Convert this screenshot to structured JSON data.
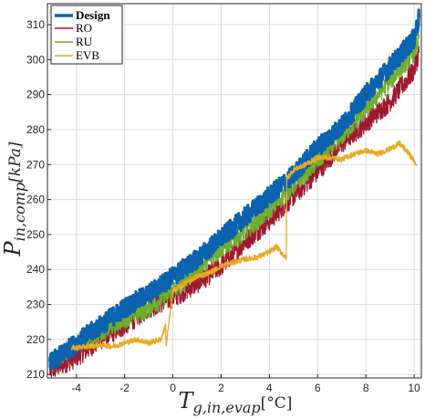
{
  "chart_data": {
    "type": "line",
    "xlabel_main": "T",
    "xlabel_sub": "g,in,evap",
    "xlabel_unit": "[°C]",
    "ylabel_main": "P",
    "ylabel_sub": "in,comp",
    "ylabel_unit": "[kPa]",
    "xlim": [
      -5.2,
      10.3
    ],
    "ylim": [
      209,
      316
    ],
    "xticks": [
      -4,
      -2,
      0,
      2,
      4,
      6,
      8,
      10
    ],
    "yticks": [
      210,
      220,
      230,
      240,
      250,
      260,
      270,
      280,
      290,
      300,
      310
    ],
    "grid": true,
    "legend_position": "top-left",
    "series": [
      {
        "name": "Design",
        "color": "#0b63b0",
        "noise": 2.8,
        "x": [
          -5.1,
          -4,
          -3,
          -2,
          -1,
          0,
          1,
          2,
          3,
          4,
          5,
          6,
          7,
          8,
          9,
          10,
          10.2
        ],
        "y": [
          213,
          219,
          224,
          229,
          233,
          238,
          243,
          249,
          255,
          261,
          267,
          275,
          281,
          290,
          298,
          306,
          312
        ]
      },
      {
        "name": "RO",
        "color": "#9e1a2e",
        "noise": 3.0,
        "x": [
          -5.1,
          -4,
          -3,
          -2,
          -1,
          0,
          1,
          2,
          3,
          4,
          5,
          6,
          7,
          8,
          9,
          10,
          10.2
        ],
        "y": [
          211,
          215,
          220,
          224,
          229,
          232,
          236,
          241,
          248,
          254,
          261,
          268,
          276,
          282,
          288,
          297,
          302
        ]
      },
      {
        "name": "RU",
        "color": "#6fae2e",
        "noise": 2.8,
        "x": [
          -5.1,
          -4,
          -3,
          -2,
          -1,
          0,
          1,
          2,
          3,
          4,
          5,
          6,
          7,
          8,
          9,
          10,
          10.2
        ],
        "y": [
          213,
          219,
          222,
          226,
          229,
          234,
          240,
          246,
          251,
          257,
          264,
          271,
          278,
          286,
          294,
          302,
          306
        ]
      },
      {
        "name": "EVB",
        "color": "#e9a923",
        "noise": 0.8,
        "x": [
          -4.2,
          -3.5,
          -3,
          -2.5,
          -2,
          -1.5,
          -1,
          -0.5,
          -0.3,
          -0.28,
          0,
          0.5,
          1,
          1.5,
          2,
          2.5,
          3,
          3.5,
          4,
          4.3,
          4.6,
          4.7,
          4.72,
          5,
          5.5,
          6,
          6.5,
          7,
          7.5,
          8,
          8.5,
          9,
          9.4,
          9.8,
          10.1
        ],
        "y": [
          217.5,
          218,
          218.5,
          218,
          219,
          220,
          219,
          220,
          224,
          218,
          234,
          236,
          238,
          239,
          241,
          242,
          243,
          243.5,
          245,
          246.5,
          244,
          243,
          266,
          268.5,
          270,
          272,
          272,
          271.5,
          273,
          274,
          273,
          274.5,
          276,
          273,
          270
        ]
      }
    ]
  }
}
